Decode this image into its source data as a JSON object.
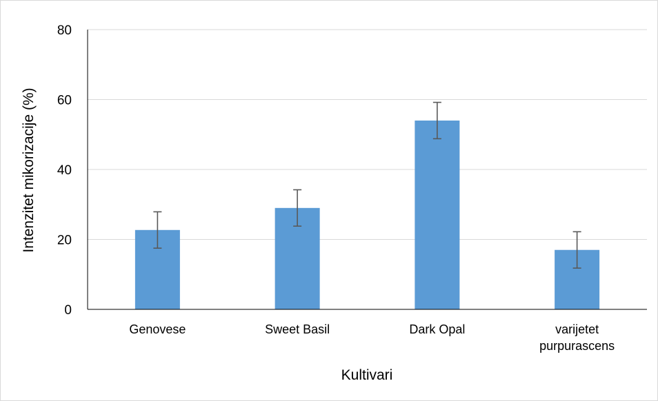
{
  "chart_data": {
    "type": "bar",
    "title": "",
    "xlabel": "Kultivari",
    "ylabel": "Intenzitet mikorizacije (%)",
    "ylim": [
      0,
      80
    ],
    "yticks": [
      "0",
      "20",
      "40",
      "60",
      "80"
    ],
    "grid": true,
    "legend": "none",
    "categories": [
      [
        "Genovese"
      ],
      [
        "Sweet Basil"
      ],
      [
        "Dark Opal"
      ],
      [
        "varijetet",
        "purpurascens"
      ]
    ],
    "values": [
      22.7,
      29.0,
      54.0,
      17.0
    ],
    "error": [
      5.2,
      5.2,
      5.2,
      5.2
    ],
    "colors": {
      "bar": "#5b9bd5",
      "grid": "#d9d9d9",
      "axis": "#000000",
      "error": "#595959"
    }
  }
}
